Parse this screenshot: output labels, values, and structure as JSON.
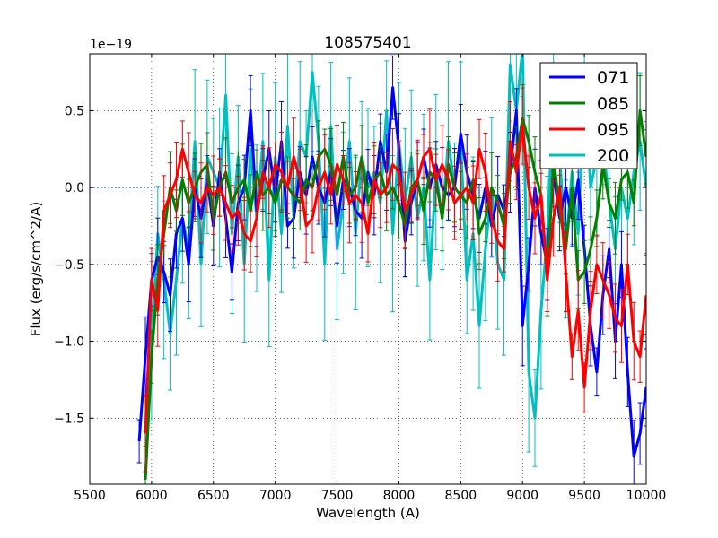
{
  "chart_data": {
    "type": "line",
    "title": "108575401",
    "xlabel": "Wavelength (A)",
    "ylabel": "Flux (erg/s/cm^2/A)",
    "offset_text": "1e−19",
    "xlim": [
      5500,
      10000
    ],
    "ylim": [
      -1.93,
      0.87
    ],
    "xticks": [
      5500,
      6000,
      6500,
      7000,
      7500,
      8000,
      8500,
      9000,
      9500,
      10000
    ],
    "xtick_labels": [
      "5500",
      "6000",
      "6500",
      "7000",
      "7500",
      "8000",
      "8500",
      "9000",
      "9500",
      "10000"
    ],
    "yticks": [
      -1.5,
      -1.0,
      -0.5,
      0.0,
      0.5
    ],
    "ytick_labels": [
      "−1.5",
      "−1.0",
      "−0.5",
      "0.0",
      "0.5"
    ],
    "grid": true,
    "legend_position": "top-right",
    "zero_line": {
      "x_start": 5500,
      "x_end": 6000,
      "y": 0.0,
      "color": "#1f5fbf"
    },
    "series": [
      {
        "name": "071",
        "color": "#0000ff",
        "x": [
          5900,
          5950,
          6000,
          6050,
          6100,
          6150,
          6200,
          6250,
          6300,
          6350,
          6400,
          6450,
          6500,
          6550,
          6600,
          6650,
          6700,
          6750,
          6800,
          6850,
          6900,
          6950,
          7000,
          7050,
          7100,
          7150,
          7200,
          7250,
          7300,
          7350,
          7400,
          7450,
          7500,
          7550,
          7600,
          7650,
          7700,
          7750,
          7800,
          7850,
          7900,
          7950,
          8000,
          8050,
          8100,
          8150,
          8200,
          8250,
          8300,
          8350,
          8400,
          8450,
          8500,
          8550,
          8600,
          8650,
          8700,
          8750,
          8800,
          8850,
          8900,
          8950,
          9000,
          9050,
          9100,
          9150,
          9200,
          9250,
          9300,
          9350,
          9400,
          9450,
          9500,
          9550,
          9600,
          9650,
          9700,
          9750,
          9800,
          9850,
          9900,
          9950,
          10000
        ],
        "y": [
          -1.65,
          -1.1,
          -0.6,
          -0.45,
          -0.55,
          -0.7,
          -0.3,
          -0.2,
          -0.5,
          0.0,
          -0.2,
          0.05,
          -0.25,
          0.1,
          -0.2,
          -0.55,
          -0.1,
          0.0,
          0.5,
          -0.15,
          0.05,
          0.25,
          -0.05,
          0.3,
          -0.25,
          -0.2,
          0.1,
          -0.05,
          0.2,
          0.0,
          -0.1,
          0.1,
          -0.25,
          0.05,
          0.0,
          -0.15,
          -0.2,
          0.1,
          -0.05,
          0.3,
          0.1,
          0.65,
          0.25,
          -0.35,
          -0.1,
          0.05,
          0.2,
          0.0,
          0.15,
          0.0,
          -0.05,
          0.0,
          0.35,
          0.1,
          -0.05,
          -0.2,
          0.0,
          -0.25,
          -0.05,
          -0.15,
          0.1,
          0.5,
          -0.9,
          -0.5,
          0.0,
          -0.3,
          -0.5,
          0.1,
          -0.2,
          0.0,
          -0.2,
          0.05,
          -0.4,
          -0.9,
          -1.2,
          -0.7,
          -0.4,
          -1.0,
          -0.5,
          -1.2,
          -1.75,
          -1.6,
          -1.3
        ],
        "err": 0.2
      },
      {
        "name": "085",
        "color": "#008000",
        "x": [
          5950,
          6000,
          6050,
          6100,
          6150,
          6200,
          6250,
          6300,
          6350,
          6400,
          6450,
          6500,
          6550,
          6600,
          6650,
          6700,
          6750,
          6800,
          6850,
          6900,
          6950,
          7000,
          7050,
          7100,
          7150,
          7200,
          7250,
          7300,
          7350,
          7400,
          7450,
          7500,
          7550,
          7600,
          7650,
          7700,
          7750,
          7800,
          7850,
          7900,
          7950,
          8000,
          8050,
          8100,
          8150,
          8200,
          8250,
          8300,
          8350,
          8400,
          8450,
          8500,
          8550,
          8600,
          8650,
          8700,
          8750,
          8800,
          8850,
          8900,
          8950,
          9000,
          9050,
          9100,
          9150,
          9200,
          9250,
          9300,
          9350,
          9400,
          9450,
          9500,
          9550,
          9600,
          9650,
          9700,
          9750,
          9800,
          9850,
          9900,
          9950,
          10000
        ],
        "y": [
          -1.9,
          -1.1,
          -0.6,
          -0.3,
          0.0,
          -0.15,
          0.05,
          -0.1,
          0.0,
          0.1,
          0.15,
          -0.2,
          0.0,
          0.1,
          -0.1,
          0.0,
          0.05,
          -0.15,
          0.1,
          -0.05,
          0.0,
          -0.1,
          0.05,
          0.0,
          -0.05,
          -0.1,
          0.05,
          0.0,
          0.2,
          0.25,
          0.15,
          -0.05,
          0.2,
          -0.05,
          0.0,
          0.2,
          -0.1,
          0.05,
          0.1,
          -0.05,
          0.0,
          -0.1,
          -0.25,
          0.0,
          0.05,
          -0.15,
          0.1,
          0.05,
          -0.2,
          0.15,
          0.0,
          -0.05,
          -0.1,
          0.05,
          -0.3,
          -0.2,
          0.0,
          -0.1,
          -0.25,
          0.1,
          0.2,
          0.45,
          0.3,
          0.1,
          -0.05,
          -0.6,
          0.2,
          -0.15,
          -0.4,
          0.0,
          -0.6,
          -0.55,
          -0.4,
          -0.2,
          0.15,
          -0.1,
          -0.2,
          0.05,
          0.1,
          -0.1,
          0.5,
          0.2
        ],
        "err": 0.18
      },
      {
        "name": "095",
        "color": "#ff0000",
        "x": [
          5950,
          6000,
          6050,
          6100,
          6150,
          6200,
          6250,
          6300,
          6350,
          6400,
          6450,
          6500,
          6550,
          6600,
          6650,
          6700,
          6750,
          6800,
          6850,
          6900,
          6950,
          7000,
          7050,
          7100,
          7150,
          7200,
          7250,
          7300,
          7350,
          7400,
          7450,
          7500,
          7550,
          7600,
          7650,
          7700,
          7750,
          7800,
          7850,
          7900,
          7950,
          8000,
          8050,
          8100,
          8150,
          8200,
          8250,
          8300,
          8350,
          8400,
          8450,
          8500,
          8550,
          8600,
          8650,
          8700,
          8750,
          8800,
          8850,
          8900,
          8950,
          9000,
          9050,
          9100,
          9150,
          9200,
          9250,
          9300,
          9350,
          9400,
          9450,
          9500,
          9550,
          9600,
          9650,
          9700,
          9750,
          9800,
          9850,
          9900,
          9950,
          10000
        ],
        "y": [
          -1.6,
          -0.6,
          -0.8,
          -0.15,
          -0.05,
          0.05,
          0.25,
          0.1,
          -0.05,
          -0.1,
          0.0,
          -0.05,
          0.0,
          -0.1,
          -0.2,
          -0.15,
          -0.3,
          -0.35,
          -0.2,
          0.1,
          0.0,
          0.15,
          0.1,
          0.0,
          0.2,
          0.05,
          -0.25,
          -0.2,
          0.0,
          0.1,
          -0.05,
          0.15,
          0.05,
          -0.1,
          -0.05,
          -0.1,
          -0.3,
          0.05,
          -0.05,
          0.0,
          0.15,
          0.1,
          -0.15,
          -0.05,
          0.05,
          0.2,
          0.25,
          0.05,
          0.15,
          0.05,
          -0.1,
          -0.05,
          0.0,
          -0.1,
          0.25,
          0.1,
          -0.2,
          -0.35,
          -0.4,
          0.3,
          0.1,
          0.4,
          0.0,
          -0.2,
          -0.05,
          -0.6,
          -0.2,
          0.0,
          -0.55,
          -1.1,
          -0.8,
          -1.3,
          -0.8,
          -0.5,
          -0.6,
          -0.7,
          -0.85,
          -0.9,
          -0.5,
          -1.0,
          -1.1,
          -0.7
        ],
        "err": 0.2
      },
      {
        "name": "200",
        "color": "#00bfbf",
        "x": [
          5950,
          6000,
          6050,
          6100,
          6150,
          6200,
          6250,
          6300,
          6350,
          6400,
          6450,
          6500,
          6550,
          6600,
          6650,
          6700,
          6750,
          6800,
          6850,
          6900,
          6950,
          7000,
          7050,
          7100,
          7150,
          7200,
          7250,
          7300,
          7350,
          7400,
          7450,
          7500,
          7550,
          7600,
          7650,
          7700,
          7750,
          7800,
          7850,
          7900,
          7950,
          8000,
          8050,
          8100,
          8150,
          8200,
          8250,
          8300,
          8350,
          8400,
          8450,
          8500,
          8550,
          8600,
          8650,
          8700,
          8750,
          8800,
          8850,
          8900,
          8950,
          9000,
          9050,
          9100,
          9150,
          9200,
          9250,
          9300,
          9350,
          9400,
          9450,
          9500,
          9550,
          9600,
          9650,
          9700,
          9750,
          9800,
          9850,
          9900,
          9950,
          10000
        ],
        "y": [
          -1.9,
          -1.0,
          -0.3,
          -0.6,
          -0.95,
          -0.6,
          -0.2,
          -0.4,
          0.3,
          -0.5,
          0.2,
          0.1,
          0.0,
          0.6,
          -0.3,
          0.2,
          -0.5,
          0.25,
          -0.2,
          0.3,
          -0.6,
          0.2,
          -0.3,
          0.4,
          -0.2,
          0.3,
          0.2,
          0.75,
          0.3,
          -0.5,
          0.4,
          -0.4,
          -0.1,
          0.3,
          -0.3,
          0.2,
          0.0,
          0.1,
          -0.1,
          0.5,
          -0.3,
          0.3,
          -0.1,
          0.2,
          -0.2,
          0.0,
          -0.6,
          0.1,
          -0.2,
          0.3,
          0.0,
          0.3,
          -0.6,
          -0.3,
          -0.9,
          -0.4,
          0.0,
          -0.5,
          -0.6,
          0.8,
          0.5,
          0.9,
          -1.2,
          -1.5,
          -0.8,
          -0.3,
          0.6,
          0.2,
          -0.4,
          0.1,
          -0.3,
          0.7,
          0.0,
          0.2,
          0.3,
          -0.1,
          -0.4,
          0.0,
          -0.2,
          0.1,
          0.3,
          0.0
        ],
        "err": 0.4
      }
    ]
  }
}
